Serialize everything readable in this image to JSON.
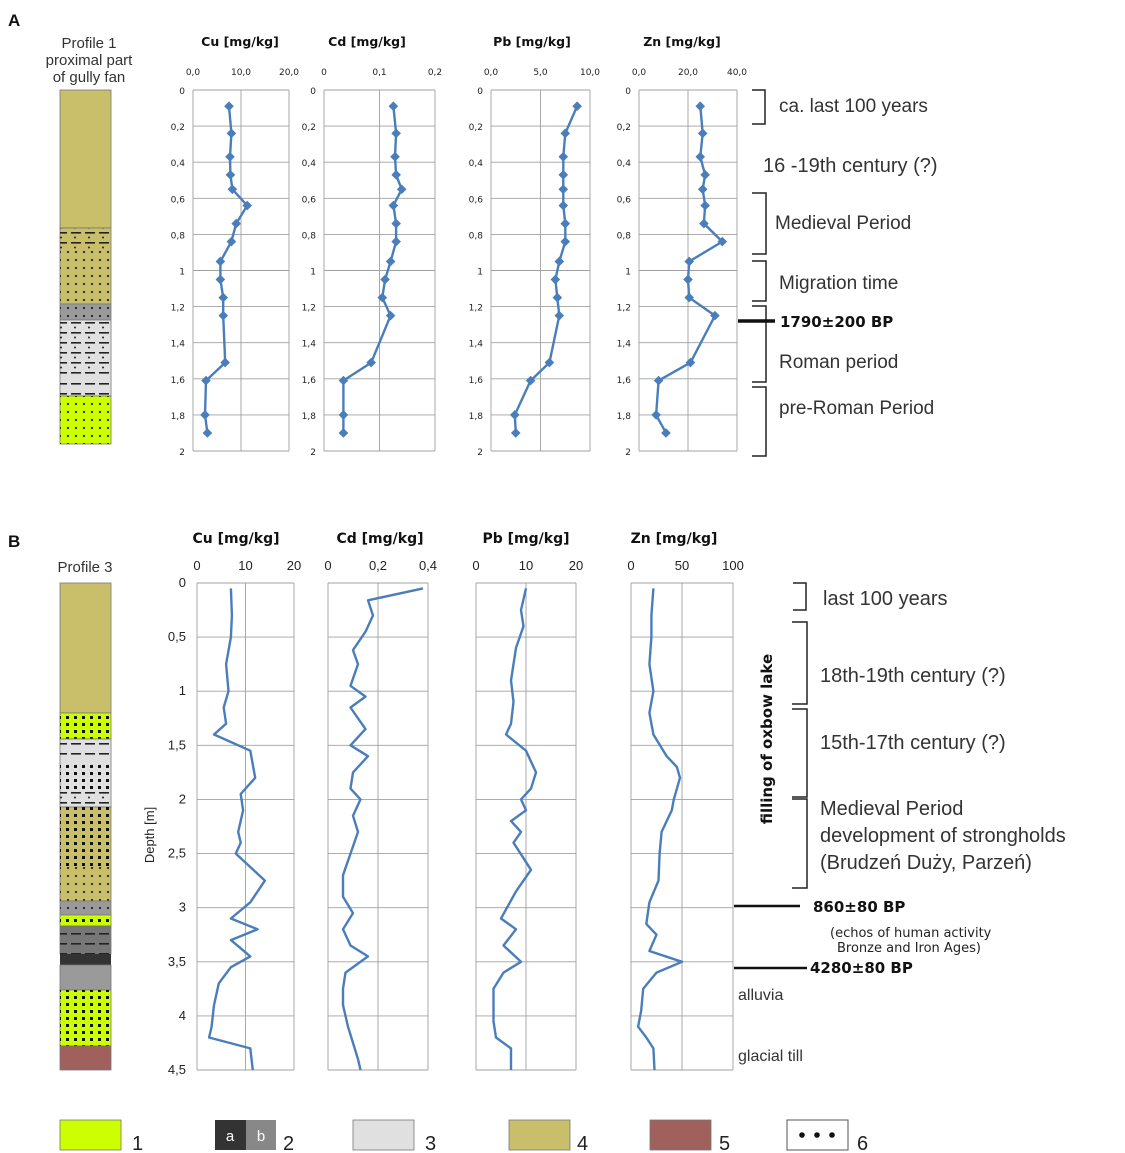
{
  "panels": {
    "A": {
      "letter": "A",
      "profile_title": [
        "Profile 1",
        "proximal part",
        "of gully fan"
      ]
    },
    "B": {
      "letter": "B",
      "profile_title": [
        "Profile 3"
      ],
      "y_axis_label": "Depth [m]",
      "vertical_label": "filling of oxbow lake"
    }
  },
  "annotations_A": {
    "periods": [
      "ca. last 100 years",
      "16 -19th century (?)",
      "Medieval Period",
      "Migration time",
      "Roman period",
      "pre-Roman Period"
    ],
    "date": "1790±200 BP"
  },
  "annotations_B": {
    "periods": [
      "last 100 years",
      "18th-19th century (?)",
      "15th-17th century (?)"
    ],
    "medieval": [
      "Medieval Period",
      "development  of strongholds",
      "(Brudzeń Duży, Parzeń)"
    ],
    "date1": "860±80 BP",
    "echo": [
      "(echos of human activity",
      "Bronze and Iron Ages)"
    ],
    "date2": "4280±80 BP",
    "alluvia": "alluvia",
    "till": "glacial till"
  },
  "legend": {
    "items": [
      "1",
      "2",
      "3",
      "4",
      "5",
      "6"
    ],
    "sub_a": "a",
    "sub_b": "b"
  },
  "colors": {
    "line": "#4a7ebb",
    "grid": "#a0a0a0",
    "olive": "#c9bf6b",
    "lime": "#ccff00",
    "lightgray": "#e0e0e0",
    "midgray": "#9a9a9a",
    "darkgray": "#333333",
    "brown": "#a0605c"
  },
  "chart_data": [
    {
      "type": "line",
      "panel": "A",
      "title": "Cu [mg/kg]",
      "xlim": [
        0,
        20
      ],
      "xticks": [
        "0,0",
        "10,0",
        "20,0"
      ],
      "ylim": [
        0,
        2
      ],
      "yticks": [
        "0",
        "0,2",
        "0,4",
        "0,6",
        "0,8",
        "1",
        "1,2",
        "1,4",
        "1,6",
        "1,8",
        "2"
      ],
      "markers": true,
      "points": [
        [
          7.5,
          0.09
        ],
        [
          8,
          0.24
        ],
        [
          7.7,
          0.37
        ],
        [
          7.8,
          0.47
        ],
        [
          8.2,
          0.55
        ],
        [
          11.3,
          0.64
        ],
        [
          9,
          0.74
        ],
        [
          8,
          0.84
        ],
        [
          5.7,
          0.95
        ],
        [
          5.7,
          1.05
        ],
        [
          6.3,
          1.15
        ],
        [
          6.3,
          1.25
        ],
        [
          6.7,
          1.51
        ],
        [
          2.7,
          1.61
        ],
        [
          2.5,
          1.8
        ],
        [
          3,
          1.9
        ]
      ]
    },
    {
      "type": "line",
      "panel": "A",
      "title": "Cd [mg/kg]",
      "xlim": [
        0,
        0.2
      ],
      "xticks": [
        "0",
        "0,1",
        "0,2"
      ],
      "ylim": [
        0,
        2
      ],
      "yticks": [
        "0",
        "0,2",
        "0,4",
        "0,6",
        "0,8",
        "1",
        "1,2",
        "1,4",
        "1,6",
        "1,8",
        "2"
      ],
      "markers": true,
      "points": [
        [
          0.125,
          0.09
        ],
        [
          0.13,
          0.24
        ],
        [
          0.128,
          0.37
        ],
        [
          0.13,
          0.47
        ],
        [
          0.14,
          0.55
        ],
        [
          0.125,
          0.64
        ],
        [
          0.13,
          0.74
        ],
        [
          0.13,
          0.84
        ],
        [
          0.12,
          0.95
        ],
        [
          0.11,
          1.05
        ],
        [
          0.105,
          1.15
        ],
        [
          0.12,
          1.25
        ],
        [
          0.085,
          1.51
        ],
        [
          0.035,
          1.61
        ],
        [
          0.035,
          1.8
        ],
        [
          0.035,
          1.9
        ]
      ]
    },
    {
      "type": "line",
      "panel": "A",
      "title": "Pb [mg/kg]",
      "xlim": [
        0,
        10
      ],
      "xticks": [
        "0,0",
        "5,0",
        "10,0"
      ],
      "ylim": [
        0,
        2
      ],
      "yticks": [
        "0",
        "0,2",
        "0,4",
        "0,6",
        "0,8",
        "1",
        "1,2",
        "1,4",
        "1,6",
        "1,8",
        "2"
      ],
      "markers": true,
      "points": [
        [
          8.7,
          0.09
        ],
        [
          7.5,
          0.24
        ],
        [
          7.3,
          0.37
        ],
        [
          7.3,
          0.47
        ],
        [
          7.3,
          0.55
        ],
        [
          7.3,
          0.64
        ],
        [
          7.5,
          0.74
        ],
        [
          7.5,
          0.84
        ],
        [
          6.9,
          0.95
        ],
        [
          6.5,
          1.05
        ],
        [
          6.7,
          1.15
        ],
        [
          6.9,
          1.25
        ],
        [
          5.9,
          1.51
        ],
        [
          4,
          1.61
        ],
        [
          2.4,
          1.8
        ],
        [
          2.5,
          1.9
        ]
      ]
    },
    {
      "type": "line",
      "panel": "A",
      "title": "Zn [mg/kg]",
      "xlim": [
        0,
        40
      ],
      "xticks": [
        "0,0",
        "20,0",
        "40,0"
      ],
      "ylim": [
        0,
        2
      ],
      "yticks": [
        "0",
        "0,2",
        "0,4",
        "0,6",
        "0,8",
        "1",
        "1,2",
        "1,4",
        "1,6",
        "1,8",
        "2"
      ],
      "markers": true,
      "points": [
        [
          25,
          0.09
        ],
        [
          26,
          0.24
        ],
        [
          25,
          0.37
        ],
        [
          27,
          0.47
        ],
        [
          26,
          0.55
        ],
        [
          27,
          0.64
        ],
        [
          26.5,
          0.74
        ],
        [
          34,
          0.84
        ],
        [
          20.5,
          0.95
        ],
        [
          20,
          1.05
        ],
        [
          20.5,
          1.15
        ],
        [
          31,
          1.25
        ],
        [
          21,
          1.51
        ],
        [
          8,
          1.61
        ],
        [
          7,
          1.8
        ],
        [
          11,
          1.9
        ]
      ]
    },
    {
      "type": "line",
      "panel": "B",
      "title": "Cu [mg/kg]",
      "xlim": [
        0,
        20
      ],
      "xticks": [
        "0",
        "10",
        "20"
      ],
      "ylim": [
        0,
        4.5
      ],
      "ylabel": "Depth [m]",
      "yticks": [
        "0",
        "0,5",
        "1",
        "1,5",
        "2",
        "2,5",
        "3",
        "3,5",
        "4",
        "4,5"
      ],
      "markers": false,
      "points": [
        [
          7,
          0.05
        ],
        [
          7.2,
          0.3
        ],
        [
          7,
          0.5
        ],
        [
          6,
          0.75
        ],
        [
          6.5,
          1
        ],
        [
          5.5,
          1.15
        ],
        [
          6,
          1.3
        ],
        [
          3.5,
          1.4
        ],
        [
          11,
          1.55
        ],
        [
          12,
          1.8
        ],
        [
          9,
          1.95
        ],
        [
          9.5,
          2.1
        ],
        [
          8.5,
          2.3
        ],
        [
          9,
          2.4
        ],
        [
          8,
          2.5
        ],
        [
          14,
          2.75
        ],
        [
          11,
          2.95
        ],
        [
          7,
          3.1
        ],
        [
          12.5,
          3.2
        ],
        [
          7,
          3.3
        ],
        [
          11,
          3.45
        ],
        [
          7,
          3.55
        ],
        [
          4.5,
          3.7
        ],
        [
          3.5,
          3.9
        ],
        [
          3,
          4.1
        ],
        [
          2.5,
          4.2
        ],
        [
          11,
          4.3
        ],
        [
          11.5,
          4.5
        ]
      ]
    },
    {
      "type": "line",
      "panel": "B",
      "title": "Cd [mg/kg]",
      "xlim": [
        0,
        0.4
      ],
      "xticks": [
        "0",
        "0,2",
        "0,4"
      ],
      "ylim": [
        0,
        4.5
      ],
      "yticks": [
        "0",
        "0,5",
        "1",
        "1,5",
        "2",
        "2,5",
        "3",
        "3,5",
        "4",
        "4,5"
      ],
      "markers": false,
      "points": [
        [
          0.38,
          0.05
        ],
        [
          0.16,
          0.16
        ],
        [
          0.18,
          0.3
        ],
        [
          0.15,
          0.45
        ],
        [
          0.1,
          0.62
        ],
        [
          0.12,
          0.75
        ],
        [
          0.09,
          0.95
        ],
        [
          0.15,
          1.05
        ],
        [
          0.09,
          1.15
        ],
        [
          0.15,
          1.35
        ],
        [
          0.09,
          1.5
        ],
        [
          0.16,
          1.6
        ],
        [
          0.1,
          1.75
        ],
        [
          0.09,
          1.9
        ],
        [
          0.13,
          2
        ],
        [
          0.1,
          2.15
        ],
        [
          0.12,
          2.3
        ],
        [
          0.09,
          2.5
        ],
        [
          0.06,
          2.7
        ],
        [
          0.06,
          2.9
        ],
        [
          0.1,
          3.05
        ],
        [
          0.06,
          3.2
        ],
        [
          0.09,
          3.35
        ],
        [
          0.16,
          3.45
        ],
        [
          0.07,
          3.6
        ],
        [
          0.06,
          3.75
        ],
        [
          0.06,
          3.9
        ],
        [
          0.08,
          4.1
        ],
        [
          0.1,
          4.25
        ],
        [
          0.12,
          4.4
        ],
        [
          0.13,
          4.5
        ]
      ]
    },
    {
      "type": "line",
      "panel": "B",
      "title": "Pb [mg/kg]",
      "xlim": [
        0,
        20
      ],
      "xticks": [
        "0",
        "10",
        "20"
      ],
      "ylim": [
        0,
        4.5
      ],
      "yticks": [
        "0",
        "0,5",
        "1",
        "1,5",
        "2",
        "2,5",
        "3",
        "3,5",
        "4",
        "4,5"
      ],
      "markers": false,
      "points": [
        [
          10,
          0.05
        ],
        [
          9,
          0.25
        ],
        [
          9.5,
          0.4
        ],
        [
          8,
          0.6
        ],
        [
          7,
          0.9
        ],
        [
          7.5,
          1.1
        ],
        [
          7,
          1.3
        ],
        [
          6,
          1.4
        ],
        [
          10,
          1.55
        ],
        [
          12,
          1.75
        ],
        [
          11,
          1.9
        ],
        [
          9,
          2
        ],
        [
          10,
          2.1
        ],
        [
          7,
          2.2
        ],
        [
          9,
          2.3
        ],
        [
          7.5,
          2.4
        ],
        [
          11,
          2.65
        ],
        [
          8,
          2.85
        ],
        [
          5,
          3.1
        ],
        [
          8,
          3.2
        ],
        [
          5.5,
          3.35
        ],
        [
          9,
          3.5
        ],
        [
          5.5,
          3.6
        ],
        [
          3.5,
          3.75
        ],
        [
          3.5,
          4.05
        ],
        [
          4,
          4.2
        ],
        [
          7,
          4.3
        ],
        [
          7,
          4.5
        ]
      ]
    },
    {
      "type": "line",
      "panel": "B",
      "title": "Zn [mg/kg]",
      "xlim": [
        0,
        100
      ],
      "xticks": [
        "0",
        "50",
        "100"
      ],
      "ylim": [
        0,
        4.5
      ],
      "yticks": [
        "0",
        "0,5",
        "1",
        "1,5",
        "2",
        "2,5",
        "3",
        "3,5",
        "4",
        "4,5"
      ],
      "markers": false,
      "points": [
        [
          22,
          0.05
        ],
        [
          20,
          0.3
        ],
        [
          20,
          0.5
        ],
        [
          18,
          0.75
        ],
        [
          22,
          1
        ],
        [
          18,
          1.2
        ],
        [
          22,
          1.4
        ],
        [
          35,
          1.6
        ],
        [
          45,
          1.7
        ],
        [
          48,
          1.8
        ],
        [
          42,
          2
        ],
        [
          40,
          2.1
        ],
        [
          30,
          2.3
        ],
        [
          28,
          2.5
        ],
        [
          27,
          2.75
        ],
        [
          18,
          2.95
        ],
        [
          15,
          3.15
        ],
        [
          25,
          3.25
        ],
        [
          18,
          3.4
        ],
        [
          50,
          3.5
        ],
        [
          25,
          3.6
        ],
        [
          12,
          3.75
        ],
        [
          10,
          3.95
        ],
        [
          7,
          4.1
        ],
        [
          15,
          4.2
        ],
        [
          22,
          4.3
        ],
        [
          23,
          4.5
        ]
      ]
    }
  ]
}
